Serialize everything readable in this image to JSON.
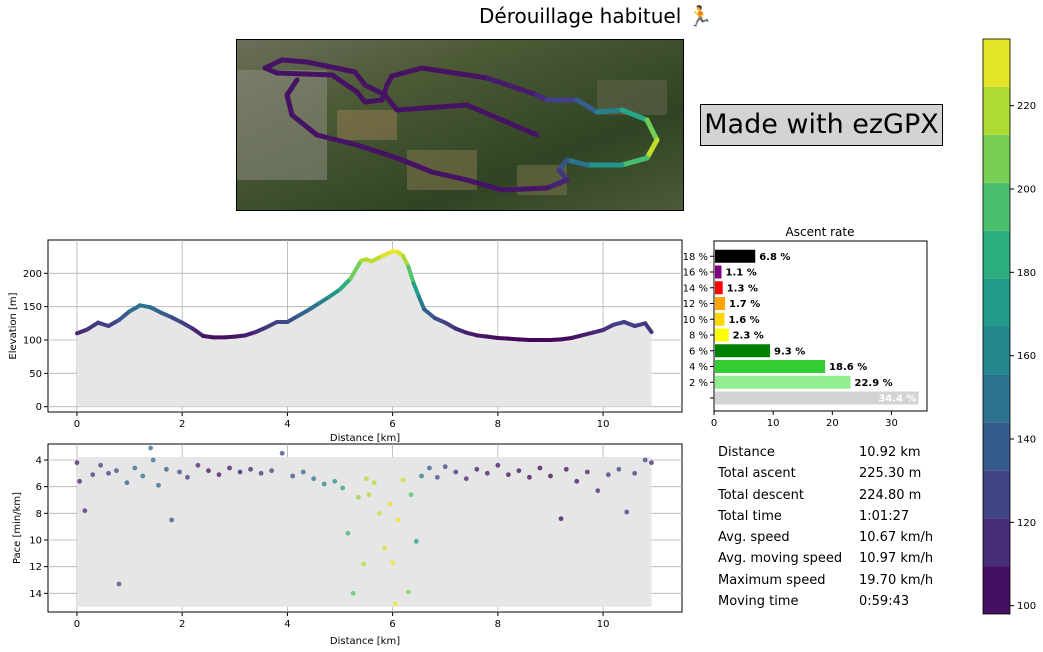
{
  "title": "Dérouillage habituel 🏃",
  "watermark": "Made with ezGPX",
  "colors": {
    "track_low": "#440154",
    "track_high": "#fde725",
    "fill_gray": "#e6e6e6"
  },
  "chart_data": [
    {
      "type": "line",
      "name": "elevation-profile",
      "xlabel": "Distance [km]",
      "ylabel": "Elevation [m]",
      "xlim": [
        -0.55,
        11.5
      ],
      "ylim": [
        -8,
        250
      ],
      "xticks": [
        0,
        2,
        4,
        6,
        8,
        10
      ],
      "yticks": [
        0,
        50,
        100,
        150,
        200
      ],
      "grid": true,
      "x": [
        0,
        0.2,
        0.4,
        0.6,
        0.8,
        1.0,
        1.2,
        1.4,
        1.6,
        1.8,
        2.0,
        2.2,
        2.4,
        2.6,
        2.8,
        3.0,
        3.2,
        3.4,
        3.6,
        3.8,
        4.0,
        4.2,
        4.4,
        4.6,
        4.8,
        5.0,
        5.2,
        5.4,
        5.5,
        5.6,
        5.8,
        6.0,
        6.1,
        6.2,
        6.3,
        6.4,
        6.5,
        6.6,
        6.8,
        7.0,
        7.2,
        7.4,
        7.6,
        7.8,
        8.0,
        8.2,
        8.4,
        8.6,
        8.8,
        9.0,
        9.2,
        9.4,
        9.6,
        9.8,
        10.0,
        10.2,
        10.4,
        10.6,
        10.8,
        10.92
      ],
      "y": [
        110,
        116,
        126,
        121,
        130,
        143,
        152,
        149,
        141,
        134,
        126,
        117,
        106,
        104,
        104,
        105,
        107,
        112,
        119,
        127,
        127,
        136,
        145,
        155,
        165,
        176,
        192,
        219,
        221,
        218,
        226,
        233,
        232,
        226,
        210,
        185,
        165,
        146,
        133,
        126,
        117,
        111,
        107,
        105,
        103,
        102,
        101,
        100,
        100,
        100,
        101,
        103,
        107,
        111,
        115,
        123,
        127,
        121,
        125,
        112
      ]
    },
    {
      "type": "bar",
      "name": "ascent-rate",
      "title": "Ascent rate",
      "orientation": "horizontal",
      "categories": [
        "",
        "2 %",
        "4 %",
        "6 %",
        "8 %",
        "10 %",
        "12 %",
        "14 %",
        "16 %",
        "18 %"
      ],
      "values": [
        34.4,
        22.9,
        18.6,
        9.3,
        2.3,
        1.6,
        1.7,
        1.3,
        1.1,
        6.8
      ],
      "labels": [
        "34.4 %",
        "22.9 %",
        "18.6 %",
        "9.3 %",
        "2.3 %",
        "1.6 %",
        "1.7 %",
        "1.3 %",
        "1.1 %",
        "6.8 %"
      ],
      "bar_colors": [
        "#d3d3d3",
        "#90ee90",
        "#32cd32",
        "#008000",
        "#ffff00",
        "#ffd700",
        "#ffa500",
        "#ff0000",
        "#800080",
        "#000000"
      ],
      "xlim": [
        0,
        36
      ],
      "xticks": [
        0,
        10,
        20,
        30
      ]
    },
    {
      "type": "scatter",
      "name": "pace-profile",
      "xlabel": "Distance [km]",
      "ylabel": "Pace [min/km]",
      "xlim": [
        -0.55,
        11.5
      ],
      "ylim": [
        15.4,
        2.8
      ],
      "xticks": [
        0,
        2,
        4,
        6,
        8,
        10
      ],
      "yticks": [
        4,
        6,
        8,
        10,
        12,
        14
      ],
      "grid": true,
      "inverted_y": true,
      "x": [
        0,
        0.05,
        0.15,
        0.3,
        0.45,
        0.6,
        0.75,
        0.8,
        0.95,
        1.1,
        1.25,
        1.4,
        1.45,
        1.55,
        1.7,
        1.8,
        1.95,
        2.1,
        2.3,
        2.5,
        2.7,
        2.9,
        3.1,
        3.3,
        3.5,
        3.7,
        3.9,
        4.1,
        4.3,
        4.5,
        4.7,
        4.9,
        5.05,
        5.15,
        5.25,
        5.35,
        5.45,
        5.5,
        5.55,
        5.65,
        5.75,
        5.85,
        5.95,
        6.0,
        6.05,
        6.1,
        6.2,
        6.3,
        6.35,
        6.45,
        6.55,
        6.7,
        6.85,
        7.0,
        7.2,
        7.4,
        7.6,
        7.8,
        8.0,
        8.2,
        8.4,
        8.6,
        8.8,
        9.0,
        9.2,
        9.3,
        9.5,
        9.7,
        9.9,
        10.1,
        10.3,
        10.45,
        10.6,
        10.8,
        10.92
      ],
      "y": [
        4.2,
        5.6,
        7.8,
        5.1,
        4.4,
        5.0,
        4.8,
        13.3,
        5.7,
        4.6,
        5.2,
        3.1,
        4.0,
        5.9,
        4.7,
        8.5,
        4.9,
        5.3,
        4.4,
        4.8,
        5.1,
        4.6,
        4.9,
        4.7,
        5.0,
        4.8,
        3.5,
        5.2,
        4.9,
        5.4,
        5.8,
        5.6,
        6.1,
        9.5,
        14.0,
        6.8,
        11.8,
        5.4,
        6.6,
        5.7,
        8.0,
        10.6,
        7.3,
        11.7,
        14.8,
        8.5,
        5.5,
        13.9,
        6.6,
        10.1,
        5.2,
        4.6,
        5.3,
        4.5,
        4.9,
        5.4,
        4.7,
        5.0,
        4.4,
        5.1,
        4.8,
        5.3,
        4.6,
        5.2,
        8.4,
        4.7,
        5.6,
        4.9,
        6.3,
        5.1,
        4.7,
        7.9,
        5.0,
        4.0,
        4.2
      ]
    },
    {
      "type": "colorbar",
      "name": "elevation-colorbar",
      "range": [
        98,
        236
      ],
      "ticks": [
        100,
        120,
        140,
        160,
        180,
        200,
        220
      ],
      "levels": 12
    }
  ],
  "stats": [
    {
      "label": "Distance",
      "value": "10.92 km"
    },
    {
      "label": "Total ascent",
      "value": "225.30 m"
    },
    {
      "label": "Total descent",
      "value": "224.80 m"
    },
    {
      "label": "Total time",
      "value": "1:01:27"
    },
    {
      "label": "Avg. speed",
      "value": "10.67 km/h"
    },
    {
      "label": "Avg. moving speed",
      "value": "10.97 km/h"
    },
    {
      "label": "Maximum speed",
      "value": "19.70 km/h"
    },
    {
      "label": "Moving time",
      "value": "0:59:43"
    }
  ]
}
